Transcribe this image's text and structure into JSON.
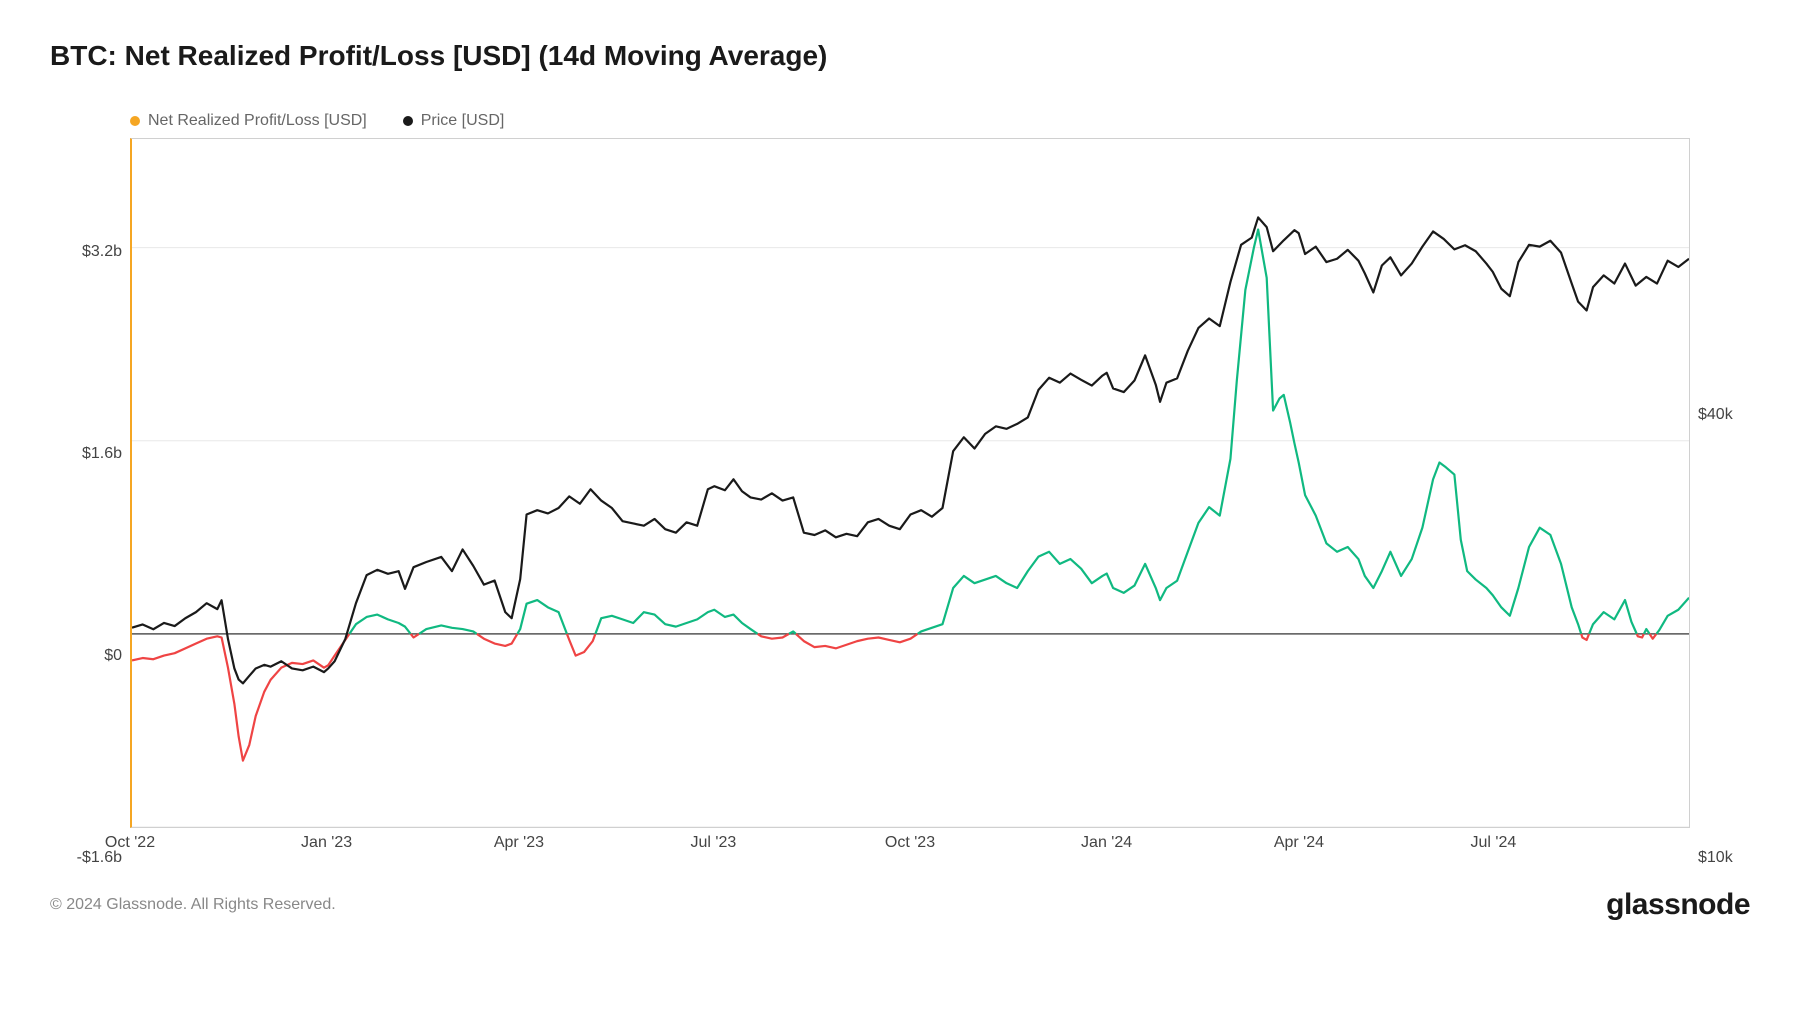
{
  "title": "BTC: Net Realized Profit/Loss [USD] (14d Moving Average)",
  "legend": {
    "series1": {
      "label": "Net Realized Profit/Loss [USD]",
      "color": "#f5a623"
    },
    "series2": {
      "label": "Price [USD]",
      "color": "#1a1a1a"
    }
  },
  "chart": {
    "type": "line",
    "background_color": "#ffffff",
    "border_color": "#d0d0d0",
    "left_border_color": "#f5a623",
    "y_left": {
      "ticks": [
        {
          "v": -1600000000,
          "label": "-$1.6b"
        },
        {
          "v": 0,
          "label": "$0"
        },
        {
          "v": 1600000000,
          "label": "$1.6b"
        },
        {
          "v": 3200000000,
          "label": "$3.2b"
        }
      ],
      "min": -1600000000,
      "max": 4100000000
    },
    "y_right": {
      "ticks": [
        {
          "v": 10000,
          "label": "$10k"
        },
        {
          "v": 40000,
          "label": "$40k"
        }
      ],
      "scale": "log",
      "min": 10000,
      "max": 95000
    },
    "x": {
      "min": 0,
      "max": 730,
      "ticks": [
        {
          "v": 0,
          "label": "Oct '22"
        },
        {
          "v": 92,
          "label": "Jan '23"
        },
        {
          "v": 182,
          "label": "Apr '23"
        },
        {
          "v": 273,
          "label": "Jul '23"
        },
        {
          "v": 365,
          "label": "Oct '23"
        },
        {
          "v": 457,
          "label": "Jan '24"
        },
        {
          "v": 547,
          "label": "Apr '24"
        },
        {
          "v": 638,
          "label": "Jul '24"
        }
      ]
    },
    "zero_line_color": "#555555",
    "price_series": {
      "color": "#1a1a1a",
      "width": 2.2,
      "data": [
        [
          0,
          19200
        ],
        [
          5,
          19400
        ],
        [
          10,
          19100
        ],
        [
          15,
          19500
        ],
        [
          20,
          19300
        ],
        [
          25,
          19800
        ],
        [
          30,
          20200
        ],
        [
          35,
          20800
        ],
        [
          40,
          20400
        ],
        [
          42,
          21000
        ],
        [
          45,
          18500
        ],
        [
          48,
          16800
        ],
        [
          50,
          16200
        ],
        [
          52,
          16000
        ],
        [
          55,
          16400
        ],
        [
          58,
          16800
        ],
        [
          62,
          17000
        ],
        [
          65,
          16900
        ],
        [
          70,
          17200
        ],
        [
          75,
          16800
        ],
        [
          80,
          16700
        ],
        [
          85,
          16900
        ],
        [
          90,
          16600
        ],
        [
          92,
          16800
        ],
        [
          95,
          17200
        ],
        [
          100,
          18500
        ],
        [
          105,
          20800
        ],
        [
          110,
          22800
        ],
        [
          115,
          23200
        ],
        [
          120,
          22900
        ],
        [
          125,
          23100
        ],
        [
          128,
          21800
        ],
        [
          132,
          23400
        ],
        [
          138,
          23800
        ],
        [
          145,
          24200
        ],
        [
          150,
          23100
        ],
        [
          155,
          24800
        ],
        [
          160,
          23500
        ],
        [
          165,
          22100
        ],
        [
          170,
          22400
        ],
        [
          175,
          20200
        ],
        [
          178,
          19800
        ],
        [
          182,
          22500
        ],
        [
          185,
          27800
        ],
        [
          190,
          28200
        ],
        [
          195,
          27900
        ],
        [
          200,
          28400
        ],
        [
          205,
          29500
        ],
        [
          210,
          28800
        ],
        [
          215,
          30200
        ],
        [
          220,
          29100
        ],
        [
          225,
          28400
        ],
        [
          230,
          27200
        ],
        [
          235,
          27000
        ],
        [
          240,
          26800
        ],
        [
          245,
          27400
        ],
        [
          250,
          26500
        ],
        [
          255,
          26200
        ],
        [
          260,
          27100
        ],
        [
          265,
          26800
        ],
        [
          270,
          30200
        ],
        [
          273,
          30500
        ],
        [
          278,
          30100
        ],
        [
          282,
          31200
        ],
        [
          286,
          30000
        ],
        [
          290,
          29400
        ],
        [
          295,
          29200
        ],
        [
          300,
          29800
        ],
        [
          305,
          29100
        ],
        [
          310,
          29400
        ],
        [
          315,
          26200
        ],
        [
          320,
          26000
        ],
        [
          325,
          26400
        ],
        [
          330,
          25800
        ],
        [
          335,
          26100
        ],
        [
          340,
          25900
        ],
        [
          345,
          27100
        ],
        [
          350,
          27400
        ],
        [
          355,
          26800
        ],
        [
          360,
          26500
        ],
        [
          365,
          27800
        ],
        [
          370,
          28200
        ],
        [
          375,
          27600
        ],
        [
          380,
          28400
        ],
        [
          385,
          34200
        ],
        [
          390,
          35800
        ],
        [
          395,
          34500
        ],
        [
          400,
          36200
        ],
        [
          405,
          37100
        ],
        [
          410,
          36800
        ],
        [
          415,
          37400
        ],
        [
          420,
          38200
        ],
        [
          425,
          41800
        ],
        [
          430,
          43500
        ],
        [
          435,
          42800
        ],
        [
          440,
          44100
        ],
        [
          445,
          43200
        ],
        [
          450,
          42400
        ],
        [
          455,
          43800
        ],
        [
          457,
          44200
        ],
        [
          460,
          42000
        ],
        [
          465,
          41500
        ],
        [
          470,
          43100
        ],
        [
          475,
          46800
        ],
        [
          480,
          42500
        ],
        [
          482,
          40200
        ],
        [
          485,
          42800
        ],
        [
          490,
          43400
        ],
        [
          495,
          47500
        ],
        [
          500,
          51200
        ],
        [
          505,
          52800
        ],
        [
          510,
          51500
        ],
        [
          515,
          59500
        ],
        [
          520,
          67200
        ],
        [
          525,
          68800
        ],
        [
          528,
          73500
        ],
        [
          532,
          71200
        ],
        [
          535,
          65800
        ],
        [
          540,
          68200
        ],
        [
          545,
          70500
        ],
        [
          547,
          69800
        ],
        [
          550,
          65200
        ],
        [
          555,
          66800
        ],
        [
          560,
          63500
        ],
        [
          565,
          64200
        ],
        [
          570,
          66100
        ],
        [
          575,
          63800
        ],
        [
          578,
          61200
        ],
        [
          582,
          57500
        ],
        [
          586,
          62800
        ],
        [
          590,
          64500
        ],
        [
          595,
          60800
        ],
        [
          600,
          63200
        ],
        [
          605,
          66800
        ],
        [
          610,
          70200
        ],
        [
          615,
          68500
        ],
        [
          620,
          66200
        ],
        [
          625,
          67100
        ],
        [
          630,
          65800
        ],
        [
          635,
          63200
        ],
        [
          638,
          61500
        ],
        [
          642,
          58200
        ],
        [
          646,
          56800
        ],
        [
          650,
          63500
        ],
        [
          655,
          67200
        ],
        [
          660,
          66800
        ],
        [
          665,
          68100
        ],
        [
          670,
          65500
        ],
        [
          675,
          59200
        ],
        [
          678,
          55800
        ],
        [
          682,
          54200
        ],
        [
          685,
          58500
        ],
        [
          690,
          60800
        ],
        [
          695,
          59200
        ],
        [
          700,
          63200
        ],
        [
          705,
          58800
        ],
        [
          710,
          60500
        ],
        [
          715,
          59200
        ],
        [
          720,
          63800
        ],
        [
          725,
          62500
        ],
        [
          730,
          64200
        ]
      ]
    },
    "pnl_series": {
      "color_pos": "#10b981",
      "color_neg": "#ef4444",
      "width": 2.2,
      "data": [
        [
          0,
          -220000000
        ],
        [
          5,
          -200000000
        ],
        [
          10,
          -210000000
        ],
        [
          15,
          -180000000
        ],
        [
          20,
          -160000000
        ],
        [
          25,
          -120000000
        ],
        [
          30,
          -80000000
        ],
        [
          35,
          -40000000
        ],
        [
          40,
          -20000000
        ],
        [
          42,
          -30000000
        ],
        [
          45,
          -280000000
        ],
        [
          48,
          -580000000
        ],
        [
          50,
          -850000000
        ],
        [
          52,
          -1050000000
        ],
        [
          55,
          -920000000
        ],
        [
          58,
          -680000000
        ],
        [
          62,
          -480000000
        ],
        [
          65,
          -380000000
        ],
        [
          70,
          -280000000
        ],
        [
          75,
          -240000000
        ],
        [
          80,
          -250000000
        ],
        [
          85,
          -220000000
        ],
        [
          90,
          -280000000
        ],
        [
          92,
          -260000000
        ],
        [
          95,
          -180000000
        ],
        [
          100,
          -50000000
        ],
        [
          105,
          80000000
        ],
        [
          110,
          140000000
        ],
        [
          115,
          160000000
        ],
        [
          120,
          120000000
        ],
        [
          125,
          90000000
        ],
        [
          128,
          60000000
        ],
        [
          132,
          -30000000
        ],
        [
          138,
          40000000
        ],
        [
          145,
          70000000
        ],
        [
          150,
          50000000
        ],
        [
          155,
          40000000
        ],
        [
          160,
          20000000
        ],
        [
          165,
          -40000000
        ],
        [
          170,
          -80000000
        ],
        [
          175,
          -100000000
        ],
        [
          178,
          -80000000
        ],
        [
          182,
          40000000
        ],
        [
          185,
          250000000
        ],
        [
          190,
          280000000
        ],
        [
          195,
          220000000
        ],
        [
          200,
          180000000
        ],
        [
          205,
          -50000000
        ],
        [
          208,
          -180000000
        ],
        [
          212,
          -150000000
        ],
        [
          216,
          -60000000
        ],
        [
          220,
          130000000
        ],
        [
          225,
          150000000
        ],
        [
          230,
          120000000
        ],
        [
          235,
          90000000
        ],
        [
          240,
          180000000
        ],
        [
          245,
          160000000
        ],
        [
          250,
          80000000
        ],
        [
          255,
          60000000
        ],
        [
          260,
          90000000
        ],
        [
          265,
          120000000
        ],
        [
          270,
          180000000
        ],
        [
          273,
          200000000
        ],
        [
          278,
          140000000
        ],
        [
          282,
          160000000
        ],
        [
          286,
          90000000
        ],
        [
          290,
          40000000
        ],
        [
          295,
          -20000000
        ],
        [
          300,
          -40000000
        ],
        [
          305,
          -30000000
        ],
        [
          310,
          20000000
        ],
        [
          315,
          -60000000
        ],
        [
          320,
          -110000000
        ],
        [
          325,
          -100000000
        ],
        [
          330,
          -120000000
        ],
        [
          335,
          -90000000
        ],
        [
          340,
          -60000000
        ],
        [
          345,
          -40000000
        ],
        [
          350,
          -30000000
        ],
        [
          355,
          -50000000
        ],
        [
          360,
          -70000000
        ],
        [
          365,
          -40000000
        ],
        [
          370,
          20000000
        ],
        [
          375,
          50000000
        ],
        [
          380,
          80000000
        ],
        [
          385,
          380000000
        ],
        [
          390,
          480000000
        ],
        [
          395,
          420000000
        ],
        [
          400,
          450000000
        ],
        [
          405,
          480000000
        ],
        [
          410,
          420000000
        ],
        [
          415,
          380000000
        ],
        [
          420,
          520000000
        ],
        [
          425,
          640000000
        ],
        [
          430,
          680000000
        ],
        [
          435,
          580000000
        ],
        [
          440,
          620000000
        ],
        [
          445,
          540000000
        ],
        [
          450,
          420000000
        ],
        [
          455,
          480000000
        ],
        [
          457,
          500000000
        ],
        [
          460,
          380000000
        ],
        [
          465,
          340000000
        ],
        [
          470,
          400000000
        ],
        [
          475,
          580000000
        ],
        [
          480,
          380000000
        ],
        [
          482,
          280000000
        ],
        [
          485,
          380000000
        ],
        [
          490,
          440000000
        ],
        [
          495,
          680000000
        ],
        [
          500,
          920000000
        ],
        [
          505,
          1050000000
        ],
        [
          510,
          980000000
        ],
        [
          515,
          1450000000
        ],
        [
          518,
          2100000000
        ],
        [
          522,
          2850000000
        ],
        [
          526,
          3200000000
        ],
        [
          528,
          3350000000
        ],
        [
          532,
          2950000000
        ],
        [
          535,
          1850000000
        ],
        [
          538,
          1950000000
        ],
        [
          540,
          1980000000
        ],
        [
          543,
          1750000000
        ],
        [
          545,
          1580000000
        ],
        [
          547,
          1420000000
        ],
        [
          550,
          1150000000
        ],
        [
          555,
          980000000
        ],
        [
          560,
          750000000
        ],
        [
          565,
          680000000
        ],
        [
          570,
          720000000
        ],
        [
          575,
          620000000
        ],
        [
          578,
          480000000
        ],
        [
          582,
          380000000
        ],
        [
          586,
          520000000
        ],
        [
          590,
          680000000
        ],
        [
          595,
          480000000
        ],
        [
          600,
          620000000
        ],
        [
          605,
          880000000
        ],
        [
          610,
          1280000000
        ],
        [
          613,
          1420000000
        ],
        [
          616,
          1380000000
        ],
        [
          620,
          1320000000
        ],
        [
          623,
          780000000
        ],
        [
          626,
          520000000
        ],
        [
          630,
          450000000
        ],
        [
          635,
          380000000
        ],
        [
          638,
          320000000
        ],
        [
          642,
          220000000
        ],
        [
          646,
          150000000
        ],
        [
          650,
          380000000
        ],
        [
          655,
          720000000
        ],
        [
          660,
          880000000
        ],
        [
          665,
          820000000
        ],
        [
          670,
          580000000
        ],
        [
          675,
          220000000
        ],
        [
          678,
          80000000
        ],
        [
          680,
          -30000000
        ],
        [
          682,
          -50000000
        ],
        [
          685,
          80000000
        ],
        [
          690,
          180000000
        ],
        [
          695,
          120000000
        ],
        [
          700,
          280000000
        ],
        [
          703,
          100000000
        ],
        [
          706,
          -20000000
        ],
        [
          708,
          -30000000
        ],
        [
          710,
          40000000
        ],
        [
          713,
          -40000000
        ],
        [
          716,
          30000000
        ],
        [
          720,
          150000000
        ],
        [
          725,
          200000000
        ],
        [
          730,
          300000000
        ]
      ]
    }
  },
  "footer": {
    "copyright": "© 2024 Glassnode. All Rights Reserved.",
    "brand": "glassnode"
  }
}
